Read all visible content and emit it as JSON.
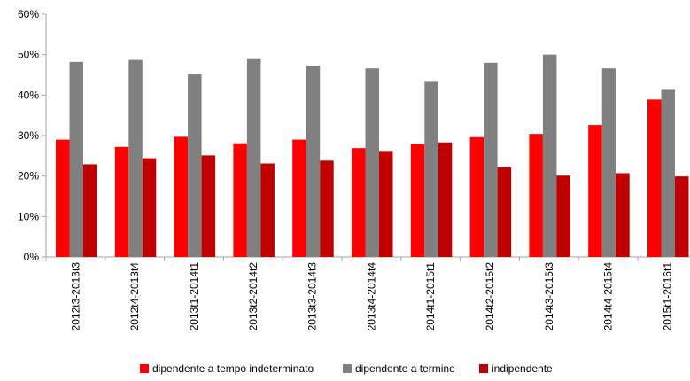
{
  "colors": {
    "dipendente_indeterminato": "#ff0000",
    "dipendente_termine": "#808080",
    "indipendente": "#c00000",
    "axis": "#a6a6a6",
    "text": "#000000"
  },
  "chart_data": {
    "type": "bar",
    "title": "",
    "xlabel": "",
    "ylabel": "",
    "ylim": [
      0,
      60
    ],
    "yticks": [
      "0%",
      "10%",
      "20%",
      "30%",
      "40%",
      "50%",
      "60%"
    ],
    "ytick_values": [
      0,
      10,
      20,
      30,
      40,
      50,
      60
    ],
    "grid": false,
    "legend_position": "bottom",
    "categories": [
      "2012t3-2013t3",
      "2012t4-2013t4",
      "2013t1-2014t1",
      "2013t2-2014t2",
      "2013t3-2014t3",
      "2013t4-2014t4",
      "2014t1-2015t1",
      "2014t2-2015t2",
      "2014t3-2015t3",
      "2014t4-2015t4",
      "2015t1-2016t1"
    ],
    "series": [
      {
        "name": "dipendente a tempo indeterminato",
        "values": [
          29.0,
          27.2,
          29.7,
          28.1,
          29.0,
          26.9,
          27.9,
          29.6,
          30.4,
          32.6,
          38.9
        ]
      },
      {
        "name": "dipendente a termine",
        "values": [
          48.2,
          48.7,
          45.1,
          48.9,
          47.3,
          46.6,
          43.5,
          48.0,
          50.0,
          46.6,
          41.3
        ]
      },
      {
        "name": "indipendente",
        "values": [
          22.9,
          24.4,
          25.1,
          23.1,
          23.8,
          26.2,
          28.3,
          22.2,
          20.1,
          20.7,
          19.9
        ]
      }
    ]
  }
}
